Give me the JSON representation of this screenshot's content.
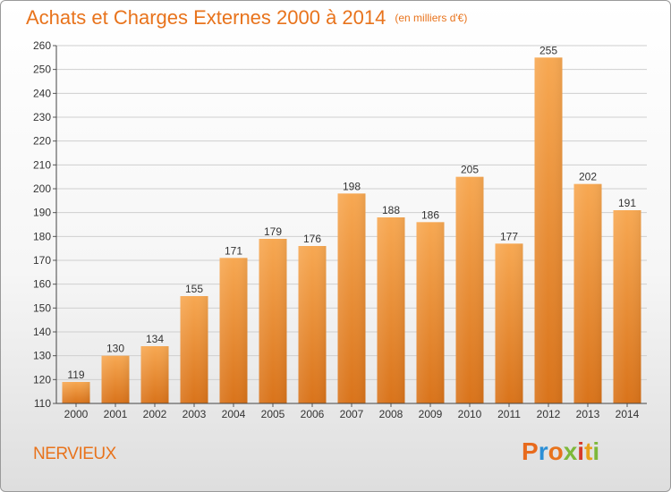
{
  "header": {
    "title": "Achats et Charges Externes 2000 à 2014",
    "subtitle": "(en milliers d'€)"
  },
  "footer": {
    "commune": "NERVIEUX",
    "logo": [
      "P",
      "r",
      "o",
      "x",
      "i",
      "t",
      "i"
    ]
  },
  "colors": {
    "bar_top": "#f7a852",
    "bar_bottom": "#d9731a",
    "title": "#e8731c"
  },
  "chart_data": {
    "type": "bar",
    "categories": [
      "2000",
      "2001",
      "2002",
      "2003",
      "2004",
      "2005",
      "2006",
      "2007",
      "2008",
      "2009",
      "2010",
      "2011",
      "2012",
      "2013",
      "2014"
    ],
    "values": [
      119,
      130,
      134,
      155,
      171,
      179,
      176,
      198,
      188,
      186,
      205,
      177,
      255,
      202,
      191
    ],
    "title": "Achats et Charges Externes 2000 à 2014",
    "ylabel": "",
    "xlabel": "",
    "ylim": [
      110,
      260
    ],
    "yticks": [
      110,
      120,
      130,
      140,
      150,
      160,
      170,
      180,
      190,
      200,
      210,
      220,
      230,
      240,
      250,
      260
    ],
    "grid": true,
    "data_labels": true
  }
}
